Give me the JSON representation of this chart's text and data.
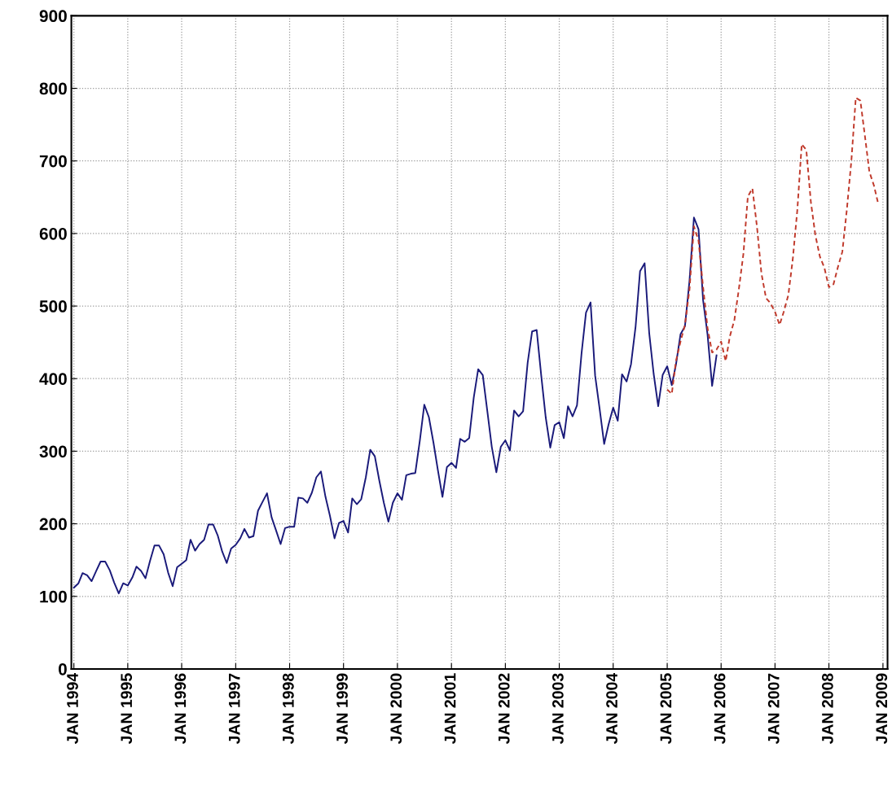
{
  "chart_data": {
    "type": "line",
    "xlim": [
      "1993-12-15",
      "2009-02-01"
    ],
    "ylim": [
      0,
      900
    ],
    "yticks": [
      0,
      100,
      200,
      300,
      400,
      500,
      600,
      700,
      800,
      900
    ],
    "xticks": [
      {
        "value": "1994-01",
        "label": "JAN 1994"
      },
      {
        "value": "1995-01",
        "label": "JAN 1995"
      },
      {
        "value": "1996-01",
        "label": "JAN 1996"
      },
      {
        "value": "1997-01",
        "label": "JAN 1997"
      },
      {
        "value": "1998-01",
        "label": "JAN 1998"
      },
      {
        "value": "1999-01",
        "label": "JAN 1999"
      },
      {
        "value": "2000-01",
        "label": "JAN 2000"
      },
      {
        "value": "2001-01",
        "label": "JAN 2001"
      },
      {
        "value": "2002-01",
        "label": "JAN 2002"
      },
      {
        "value": "2003-01",
        "label": "JAN 2003"
      },
      {
        "value": "2004-01",
        "label": "JAN 2004"
      },
      {
        "value": "2005-01",
        "label": "JAN 2005"
      },
      {
        "value": "2006-01",
        "label": "JAN 2006"
      },
      {
        "value": "2007-01",
        "label": "JAN 2007"
      },
      {
        "value": "2008-01",
        "label": "JAN 2008"
      },
      {
        "value": "2009-01",
        "label": "JAN 2009"
      }
    ],
    "grid": true,
    "series": [
      {
        "color": "#1a1a7a",
        "line_style": "solid",
        "x": [
          "1994-01",
          "1994-02",
          "1994-03",
          "1994-04",
          "1994-05",
          "1994-06",
          "1994-07",
          "1994-08",
          "1994-09",
          "1994-10",
          "1994-11",
          "1994-12",
          "1995-01",
          "1995-02",
          "1995-03",
          "1995-04",
          "1995-05",
          "1995-06",
          "1995-07",
          "1995-08",
          "1995-09",
          "1995-10",
          "1995-11",
          "1995-12",
          "1996-01",
          "1996-02",
          "1996-03",
          "1996-04",
          "1996-05",
          "1996-06",
          "1996-07",
          "1996-08",
          "1996-09",
          "1996-10",
          "1996-11",
          "1996-12",
          "1997-01",
          "1997-02",
          "1997-03",
          "1997-04",
          "1997-05",
          "1997-06",
          "1997-07",
          "1997-08",
          "1997-09",
          "1997-10",
          "1997-11",
          "1997-12",
          "1998-01",
          "1998-02",
          "1998-03",
          "1998-04",
          "1998-05",
          "1998-06",
          "1998-07",
          "1998-08",
          "1998-09",
          "1998-10",
          "1998-11",
          "1998-12",
          "1999-01",
          "1999-02",
          "1999-03",
          "1999-04",
          "1999-05",
          "1999-06",
          "1999-07",
          "1999-08",
          "1999-09",
          "1999-10",
          "1999-11",
          "1999-12",
          "2000-01",
          "2000-02",
          "2000-03",
          "2000-04",
          "2000-05",
          "2000-06",
          "2000-07",
          "2000-08",
          "2000-09",
          "2000-10",
          "2000-11",
          "2000-12",
          "2001-01",
          "2001-02",
          "2001-03",
          "2001-04",
          "2001-05",
          "2001-06",
          "2001-07",
          "2001-08",
          "2001-09",
          "2001-10",
          "2001-11",
          "2001-12",
          "2002-01",
          "2002-02",
          "2002-03",
          "2002-04",
          "2002-05",
          "2002-06",
          "2002-07",
          "2002-08",
          "2002-09",
          "2002-10",
          "2002-11",
          "2002-12",
          "2003-01",
          "2003-02",
          "2003-03",
          "2003-04",
          "2003-05",
          "2003-06",
          "2003-07",
          "2003-08",
          "2003-09",
          "2003-10",
          "2003-11",
          "2003-12",
          "2004-01",
          "2004-02",
          "2004-03",
          "2004-04",
          "2004-05",
          "2004-06",
          "2004-07",
          "2004-08",
          "2004-09",
          "2004-10",
          "2004-11",
          "2004-12",
          "2005-01",
          "2005-02",
          "2005-03",
          "2005-04",
          "2005-05",
          "2005-06",
          "2005-07",
          "2005-08",
          "2005-09",
          "2005-10",
          "2005-11",
          "2005-12"
        ],
        "values": [
          112,
          118,
          132,
          129,
          121,
          135,
          148,
          148,
          136,
          119,
          104,
          118,
          115,
          126,
          141,
          135,
          125,
          149,
          170,
          170,
          158,
          133,
          114,
          140,
          145,
          150,
          178,
          163,
          172,
          178,
          199,
          199,
          184,
          162,
          146,
          166,
          171,
          180,
          193,
          181,
          183,
          218,
          230,
          242,
          209,
          191,
          172,
          194,
          196,
          196,
          236,
          235,
          229,
          243,
          264,
          272,
          237,
          211,
          180,
          201,
          204,
          188,
          235,
          227,
          234,
          264,
          302,
          293,
          259,
          229,
          203,
          229,
          242,
          233,
          267,
          269,
          270,
          315,
          364,
          347,
          312,
          274,
          237,
          278,
          284,
          277,
          317,
          313,
          318,
          374,
          413,
          405,
          355,
          306,
          271,
          306,
          315,
          301,
          356,
          348,
          355,
          422,
          465,
          467,
          404,
          347,
          305,
          336,
          340,
          318,
          362,
          348,
          363,
          435,
          491,
          505,
          404,
          359,
          310,
          337,
          360,
          342,
          406,
          396,
          420,
          472,
          548,
          559,
          463,
          407,
          362,
          405,
          417,
          391,
          419,
          461,
          472,
          535,
          622,
          606,
          508,
          461,
          390,
          432
        ]
      },
      {
        "color": "#c0392b",
        "line_style": "dashed",
        "x": [
          "2005-01",
          "2005-02",
          "2005-03",
          "2005-04",
          "2005-05",
          "2005-06",
          "2005-07",
          "2005-08",
          "2005-09",
          "2005-10",
          "2005-11",
          "2005-12",
          "2006-01",
          "2006-02",
          "2006-03",
          "2006-04",
          "2006-05",
          "2006-06",
          "2006-07",
          "2006-08",
          "2006-09",
          "2006-10",
          "2006-11",
          "2006-12",
          "2007-01",
          "2007-02",
          "2007-03",
          "2007-04",
          "2007-05",
          "2007-06",
          "2007-07",
          "2007-08",
          "2007-09",
          "2007-10",
          "2007-11",
          "2007-12",
          "2008-01",
          "2008-02",
          "2008-03",
          "2008-04",
          "2008-05",
          "2008-06",
          "2008-07",
          "2008-08",
          "2008-09",
          "2008-10",
          "2008-11",
          "2008-12"
        ],
        "values": [
          385,
          379,
          424,
          451,
          474,
          523,
          610,
          590,
          526,
          470,
          436,
          440,
          451,
          424,
          458,
          481,
          523,
          572,
          651,
          662,
          609,
          545,
          511,
          504,
          492,
          474,
          492,
          515,
          564,
          632,
          723,
          715,
          643,
          598,
          568,
          553,
          526,
          530,
          553,
          575,
          632,
          700,
          787,
          783,
          734,
          685,
          666,
          640
        ]
      }
    ]
  }
}
